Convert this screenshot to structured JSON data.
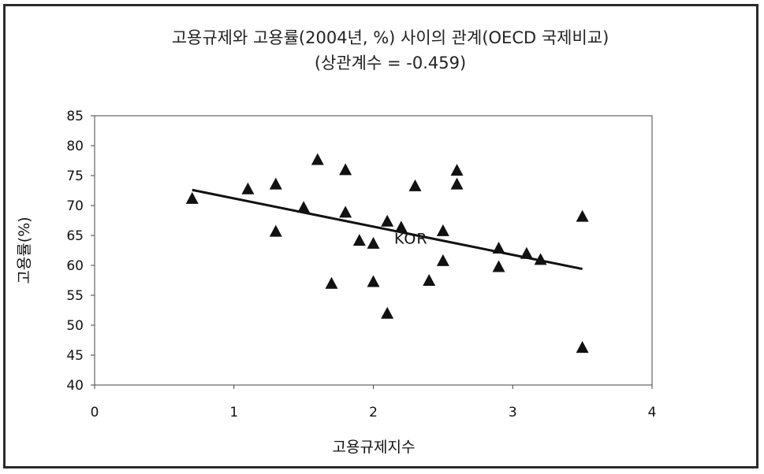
{
  "chart_data": {
    "type": "scatter",
    "title": "고용규제와 고용률(2004년, %) 사이의 관계(OECD 국제비교)",
    "subtitle": "(상관계수 = -0.459)",
    "xlabel": "고용규제지수",
    "ylabel": "고용률(%)",
    "xlim": [
      0,
      4
    ],
    "ylim": [
      40,
      85
    ],
    "xticks": [
      "0",
      "1",
      "2",
      "3",
      "4"
    ],
    "yticks": [
      "40",
      "45",
      "50",
      "55",
      "60",
      "65",
      "70",
      "75",
      "80",
      "85"
    ],
    "grid": false,
    "legend": "none",
    "marker_color": "#111111",
    "points": [
      {
        "x": 0.7,
        "y": 71.2
      },
      {
        "x": 1.1,
        "y": 72.8
      },
      {
        "x": 1.3,
        "y": 73.6
      },
      {
        "x": 1.3,
        "y": 65.7
      },
      {
        "x": 1.5,
        "y": 69.7
      },
      {
        "x": 1.6,
        "y": 77.7
      },
      {
        "x": 1.7,
        "y": 57.0
      },
      {
        "x": 1.8,
        "y": 76.0
      },
      {
        "x": 1.8,
        "y": 68.9
      },
      {
        "x": 1.9,
        "y": 64.2
      },
      {
        "x": 2.0,
        "y": 63.7
      },
      {
        "x": 2.0,
        "y": 57.3
      },
      {
        "x": 2.1,
        "y": 67.4
      },
      {
        "x": 2.1,
        "y": 52.0
      },
      {
        "x": 2.2,
        "y": 66.4
      },
      {
        "x": 2.3,
        "y": 73.3
      },
      {
        "x": 2.4,
        "y": 57.5
      },
      {
        "x": 2.5,
        "y": 65.8
      },
      {
        "x": 2.5,
        "y": 60.8
      },
      {
        "x": 2.6,
        "y": 75.9
      },
      {
        "x": 2.6,
        "y": 73.6
      },
      {
        "x": 2.9,
        "y": 62.9
      },
      {
        "x": 2.9,
        "y": 59.8
      },
      {
        "x": 3.1,
        "y": 62.0
      },
      {
        "x": 3.2,
        "y": 61.0
      },
      {
        "x": 3.5,
        "y": 68.2
      },
      {
        "x": 3.5,
        "y": 46.3
      }
    ],
    "trendline": {
      "x": [
        0.7,
        3.5
      ],
      "y": [
        72.6,
        59.4
      ]
    },
    "annotations": [
      {
        "text": "KOR",
        "x": 2.15,
        "y": 63.6
      }
    ]
  }
}
